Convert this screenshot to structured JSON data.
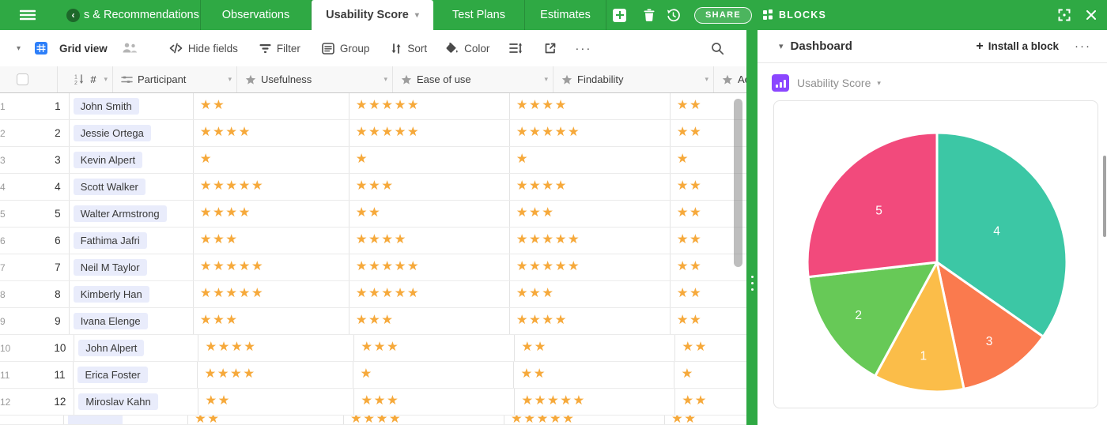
{
  "topbar": {
    "menu_icon": "hamburger-icon",
    "tabs": [
      {
        "label": "s & Recommendations",
        "partial": true,
        "scroll_icon": "chevron-left-circle-icon"
      },
      {
        "label": "Observations"
      },
      {
        "label": "Usability Score",
        "active": true,
        "caret_icon": "chevron-down-icon"
      },
      {
        "label": "Test Plans"
      },
      {
        "label": "Estimates"
      }
    ],
    "add_table_icon": "plus-icon",
    "trash_icon": "trash-icon",
    "history_icon": "history-icon",
    "share_label": "SHARE",
    "blocks_icon": "blocks-icon",
    "blocks_label": "BLOCKS",
    "expand_icon": "fullscreen-icon",
    "close_icon": "close-icon",
    "bar_color": "#2fa944"
  },
  "toolbar": {
    "view_caret_icon": "chevron-down-icon",
    "view_icon": "grid-icon",
    "view_name": "Grid view",
    "collaborators_icon": "people-icon",
    "items": [
      {
        "label": "Hide fields",
        "icon": "hide-fields-icon"
      },
      {
        "label": "Filter",
        "icon": "filter-funnel-icon"
      },
      {
        "label": "Group",
        "icon": "group-icon"
      },
      {
        "label": "Sort",
        "icon": "sort-arrows-icon"
      },
      {
        "label": "Color",
        "icon": "paint-bucket-icon"
      }
    ],
    "row_height_icon": "row-height-icon",
    "export_icon": "share-view-icon",
    "more_label": "···",
    "search_icon": "search-icon"
  },
  "grid": {
    "columns": [
      {
        "label": "#",
        "icon": "autonumber-icon"
      },
      {
        "label": "Participant",
        "icon": "text-field-icon"
      },
      {
        "label": "Usefulness",
        "icon": "star-icon"
      },
      {
        "label": "Ease of use",
        "icon": "star-icon"
      },
      {
        "label": "Findability",
        "icon": "star-icon"
      },
      {
        "label": "Ae",
        "icon": "star-icon",
        "truncated": true
      }
    ],
    "star_color": "#f6a93b",
    "rows": [
      {
        "row": 1,
        "id": "1",
        "participant": "John Smith",
        "usefulness": 2,
        "ease_of_use": 5,
        "findability": 4,
        "aesthetics_visible": 2
      },
      {
        "row": 2,
        "id": "2",
        "participant": "Jessie Ortega",
        "usefulness": 4,
        "ease_of_use": 5,
        "findability": 5,
        "aesthetics_visible": 2
      },
      {
        "row": 3,
        "id": "3",
        "participant": "Kevin Alpert",
        "usefulness": 1,
        "ease_of_use": 1,
        "findability": 1,
        "aesthetics_visible": 1
      },
      {
        "row": 4,
        "id": "4",
        "participant": "Scott Walker",
        "usefulness": 5,
        "ease_of_use": 3,
        "findability": 4,
        "aesthetics_visible": 2
      },
      {
        "row": 5,
        "id": "5",
        "participant": "Walter Armstrong",
        "usefulness": 4,
        "ease_of_use": 2,
        "findability": 3,
        "aesthetics_visible": 2
      },
      {
        "row": 6,
        "id": "6",
        "participant": "Fathima Jafri",
        "usefulness": 3,
        "ease_of_use": 4,
        "findability": 5,
        "aesthetics_visible": 2
      },
      {
        "row": 7,
        "id": "7",
        "participant": "Neil M Taylor",
        "usefulness": 5,
        "ease_of_use": 5,
        "findability": 5,
        "aesthetics_visible": 2
      },
      {
        "row": 8,
        "id": "8",
        "participant": "Kimberly Han",
        "usefulness": 5,
        "ease_of_use": 5,
        "findability": 3,
        "aesthetics_visible": 2
      },
      {
        "row": 9,
        "id": "9",
        "participant": "Ivana Elenge",
        "usefulness": 3,
        "ease_of_use": 3,
        "findability": 4,
        "aesthetics_visible": 2
      },
      {
        "row": 10,
        "id": "10",
        "participant": "John Alpert",
        "usefulness": 4,
        "ease_of_use": 3,
        "findability": 2,
        "aesthetics_visible": 2
      },
      {
        "row": 11,
        "id": "11",
        "participant": "Erica Foster",
        "usefulness": 4,
        "ease_of_use": 1,
        "findability": 2,
        "aesthetics_visible": 1
      },
      {
        "row": 12,
        "id": "12",
        "participant": "Miroslav Kahn",
        "usefulness": 2,
        "ease_of_use": 3,
        "findability": 5,
        "aesthetics_visible": 2
      }
    ],
    "partial_row": {
      "usefulness": 2,
      "ease_of_use": 4,
      "findability": 5,
      "aesthetics_visible": 2
    }
  },
  "panel": {
    "title": "Dashboard",
    "install_block_label": "Install a block",
    "more_label": "···",
    "block": {
      "icon": "bar-chart-icon",
      "icon_color": "#8b46ff",
      "title": "Usability Score"
    }
  },
  "chart_data": {
    "type": "pie",
    "title": "Usability Score",
    "start": "top",
    "direction": "clockwise",
    "label_color": "#ffffff",
    "legend": "none",
    "slices": [
      {
        "label": "4",
        "angle_deg": 125.0,
        "percent": 34.7,
        "color": "#3cc7a5"
      },
      {
        "label": "3",
        "angle_deg": 43.0,
        "percent": 11.9,
        "color": "#fa7a4e"
      },
      {
        "label": "1",
        "angle_deg": 40.5,
        "percent": 11.3,
        "color": "#fbbd49"
      },
      {
        "label": "2",
        "angle_deg": 55.0,
        "percent": 15.3,
        "color": "#67c957"
      },
      {
        "label": "5",
        "angle_deg": 96.5,
        "percent": 26.8,
        "color": "#f24a7c"
      }
    ]
  }
}
